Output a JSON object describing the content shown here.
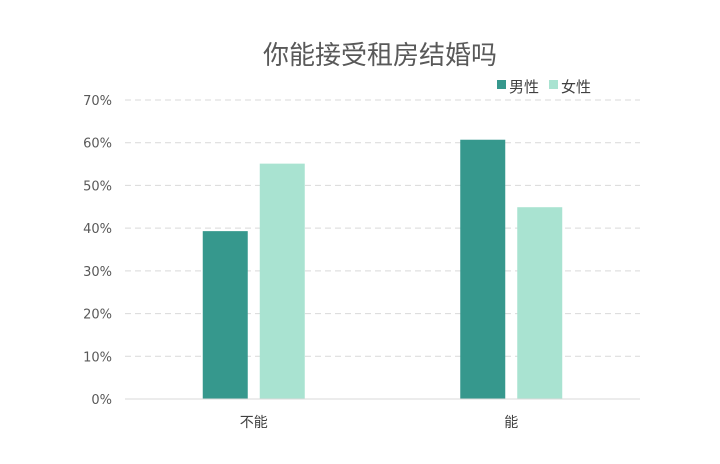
{
  "chart_data": {
    "type": "bar",
    "title": "你能接受租房结婚吗",
    "categories": [
      "不能",
      "能"
    ],
    "series": [
      {
        "name": "男性",
        "values": [
          39.3,
          60.7
        ],
        "color": "#36988d"
      },
      {
        "name": "女性",
        "values": [
          55.1,
          44.9
        ],
        "color": "#a9e3d1"
      }
    ],
    "ylim": [
      0,
      70
    ],
    "yticks": [
      "0%",
      "10%",
      "20%",
      "30%",
      "40%",
      "50%",
      "60%",
      "70%"
    ],
    "grid": true,
    "legend_position": "top-right"
  }
}
